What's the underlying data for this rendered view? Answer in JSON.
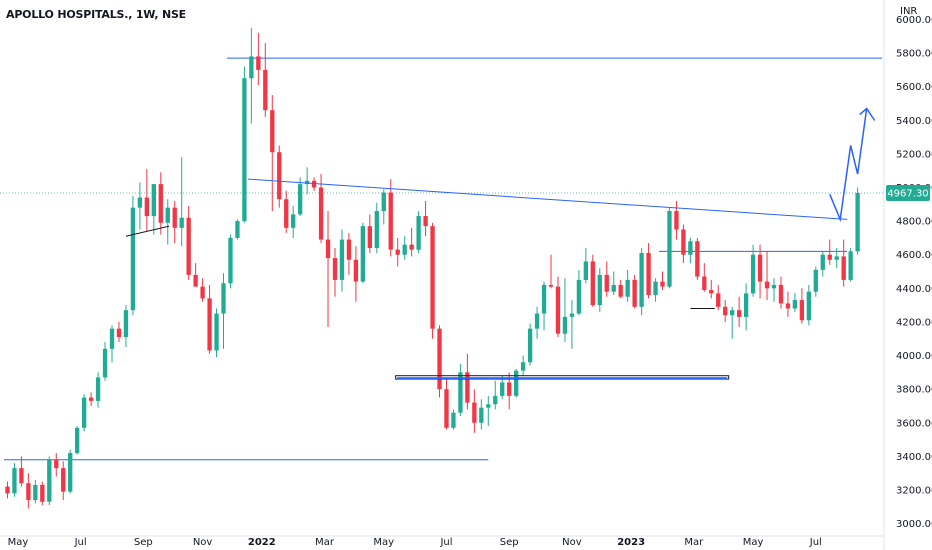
{
  "header": {
    "title": "APOLLO HOSPITALS., 1W, NSE"
  },
  "chart_data": {
    "type": "candlestick",
    "currency": "INR",
    "last_price_label": "4967.30",
    "y_range": [
      2950,
      6080
    ],
    "y_ticks": [
      3000,
      3200,
      3400,
      3600,
      3800,
      4000,
      4200,
      4400,
      4600,
      4800,
      5000,
      5200,
      5400,
      5600,
      5800,
      6000
    ],
    "y_tick_labels": [
      "3000.00",
      "3200.00",
      "3400.00",
      "3600.00",
      "3800.00",
      "4000.00",
      "4200.00",
      "4400.00",
      "4600.00",
      "4800.00",
      "5000.00",
      "5200.00",
      "5400.00",
      "5600.00",
      "5800.00",
      "6000.00"
    ],
    "x_range": [
      0,
      126
    ],
    "x_ticks": [
      {
        "label": "May",
        "x": 2,
        "bold": false
      },
      {
        "label": "Jul",
        "x": 11,
        "bold": false
      },
      {
        "label": "Sep",
        "x": 20,
        "bold": false
      },
      {
        "label": "Nov",
        "x": 28.5,
        "bold": false
      },
      {
        "label": "2022",
        "x": 37,
        "bold": true
      },
      {
        "label": "Mar",
        "x": 46,
        "bold": false
      },
      {
        "label": "May",
        "x": 54.5,
        "bold": false
      },
      {
        "label": "Jul",
        "x": 63.5,
        "bold": false
      },
      {
        "label": "Sep",
        "x": 72.5,
        "bold": false
      },
      {
        "label": "Nov",
        "x": 81.5,
        "bold": false
      },
      {
        "label": "2023",
        "x": 90,
        "bold": true
      },
      {
        "label": "Mar",
        "x": 99,
        "bold": false
      },
      {
        "label": "May",
        "x": 107.5,
        "bold": false
      },
      {
        "label": "Jul",
        "x": 116.5,
        "bold": false
      }
    ],
    "up_color": "#22ab94",
    "down_color": "#f23645",
    "line_color": "#2962ff",
    "candles": [
      [
        3220,
        3250,
        3150,
        3180
      ],
      [
        3180,
        3360,
        3160,
        3330
      ],
      [
        3330,
        3400,
        3220,
        3240
      ],
      [
        3240,
        3300,
        3090,
        3140
      ],
      [
        3140,
        3260,
        3120,
        3230
      ],
      [
        3230,
        3250,
        3110,
        3130
      ],
      [
        3130,
        3400,
        3110,
        3380
      ],
      [
        3380,
        3420,
        3280,
        3330
      ],
      [
        3330,
        3370,
        3140,
        3190
      ],
      [
        3190,
        3440,
        3180,
        3420
      ],
      [
        3420,
        3580,
        3410,
        3570
      ],
      [
        3570,
        3770,
        3550,
        3750
      ],
      [
        3750,
        3780,
        3700,
        3730
      ],
      [
        3730,
        3900,
        3690,
        3870
      ],
      [
        3870,
        4080,
        3850,
        4040
      ],
      [
        4040,
        4180,
        3960,
        4160
      ],
      [
        4160,
        4200,
        4080,
        4110
      ],
      [
        4110,
        4300,
        4050,
        4270
      ],
      [
        4270,
        4950,
        4240,
        4880
      ],
      [
        4880,
        5030,
        4750,
        4940
      ],
      [
        4940,
        5110,
        4740,
        4830
      ],
      [
        4830,
        5020,
        4720,
        5020
      ],
      [
        5020,
        5090,
        4720,
        4790
      ],
      [
        4790,
        4930,
        4660,
        4880
      ],
      [
        4880,
        4920,
        4670,
        4760
      ],
      [
        4760,
        5180,
        4650,
        4820
      ],
      [
        4820,
        4890,
        4450,
        4480
      ],
      [
        4480,
        4550,
        4410,
        4410
      ],
      [
        4410,
        4460,
        4320,
        4340
      ],
      [
        4340,
        4420,
        4010,
        4030
      ],
      [
        4030,
        4280,
        3990,
        4250
      ],
      [
        4250,
        4490,
        4040,
        4430
      ],
      [
        4430,
        4720,
        4400,
        4700
      ],
      [
        4700,
        4810,
        4690,
        4800
      ],
      [
        4800,
        5720,
        4790,
        5650
      ],
      [
        5650,
        5950,
        5380,
        5780
      ],
      [
        5780,
        5920,
        5610,
        5700
      ],
      [
        5700,
        5860,
        5420,
        5460
      ],
      [
        5460,
        5550,
        4860,
        5210
      ],
      [
        5210,
        5250,
        4880,
        4930
      ],
      [
        4930,
        4980,
        4730,
        4760
      ],
      [
        4760,
        4890,
        4700,
        4840
      ],
      [
        4840,
        5060,
        4830,
        5020
      ],
      [
        5020,
        5120,
        4960,
        5040
      ],
      [
        5040,
        5060,
        4980,
        5000
      ],
      [
        5000,
        5080,
        4670,
        4690
      ],
      [
        4690,
        4860,
        4170,
        4580
      ],
      [
        4580,
        4640,
        4350,
        4450
      ],
      [
        4450,
        4750,
        4380,
        4690
      ],
      [
        4690,
        4730,
        4480,
        4570
      ],
      [
        4570,
        4650,
        4320,
        4440
      ],
      [
        4440,
        4790,
        4430,
        4770
      ],
      [
        4770,
        4840,
        4610,
        4640
      ],
      [
        4640,
        4910,
        4610,
        4860
      ],
      [
        4860,
        4990,
        4780,
        4970
      ],
      [
        4970,
        5050,
        4590,
        4630
      ],
      [
        4630,
        4700,
        4530,
        4600
      ],
      [
        4600,
        4710,
        4570,
        4660
      ],
      [
        4660,
        4760,
        4590,
        4630
      ],
      [
        4630,
        4860,
        4610,
        4830
      ],
      [
        4830,
        4920,
        4710,
        4770
      ],
      [
        4770,
        4790,
        4100,
        4160
      ],
      [
        4160,
        4180,
        3750,
        3800
      ],
      [
        3800,
        3860,
        3560,
        3570
      ],
      [
        3570,
        3680,
        3560,
        3660
      ],
      [
        3660,
        3950,
        3640,
        3900
      ],
      [
        3900,
        4010,
        3680,
        3720
      ],
      [
        3720,
        3800,
        3540,
        3600
      ],
      [
        3600,
        3740,
        3560,
        3690
      ],
      [
        3690,
        3760,
        3580,
        3710
      ],
      [
        3710,
        3850,
        3680,
        3760
      ],
      [
        3760,
        3880,
        3740,
        3840
      ],
      [
        3840,
        3900,
        3680,
        3760
      ],
      [
        3760,
        3920,
        3750,
        3910
      ],
      [
        3910,
        4000,
        3880,
        3960
      ],
      [
        3960,
        4190,
        3940,
        4160
      ],
      [
        4160,
        4290,
        4100,
        4250
      ],
      [
        4250,
        4440,
        4150,
        4420
      ],
      [
        4420,
        4600,
        4400,
        4410
      ],
      [
        4410,
        4470,
        4110,
        4130
      ],
      [
        4130,
        4460,
        4080,
        4230
      ],
      [
        4230,
        4330,
        4040,
        4250
      ],
      [
        4250,
        4510,
        4240,
        4450
      ],
      [
        4450,
        4640,
        4430,
        4560
      ],
      [
        4560,
        4600,
        4290,
        4300
      ],
      [
        4300,
        4520,
        4260,
        4480
      ],
      [
        4480,
        4560,
        4350,
        4380
      ],
      [
        4380,
        4500,
        4360,
        4420
      ],
      [
        4420,
        4450,
        4340,
        4350
      ],
      [
        4350,
        4510,
        4320,
        4450
      ],
      [
        4450,
        4480,
        4280,
        4290
      ],
      [
        4290,
        4640,
        4240,
        4610
      ],
      [
        4610,
        4670,
        4340,
        4360
      ],
      [
        4360,
        4460,
        4320,
        4440
      ],
      [
        4440,
        4500,
        4390,
        4410
      ],
      [
        4410,
        4880,
        4400,
        4860
      ],
      [
        4860,
        4920,
        4690,
        4750
      ],
      [
        4750,
        4780,
        4550,
        4600
      ],
      [
        4600,
        4700,
        4550,
        4680
      ],
      [
        4680,
        4700,
        4450,
        4470
      ],
      [
        4470,
        4550,
        4380,
        4390
      ],
      [
        4390,
        4450,
        4340,
        4370
      ],
      [
        4370,
        4420,
        4270,
        4290
      ],
      [
        4290,
        4330,
        4200,
        4240
      ],
      [
        4240,
        4290,
        4100,
        4270
      ],
      [
        4270,
        4350,
        4170,
        4230
      ],
      [
        4230,
        4430,
        4150,
        4370
      ],
      [
        4370,
        4660,
        4350,
        4600
      ],
      [
        4600,
        4660,
        4340,
        4440
      ],
      [
        4440,
        4620,
        4330,
        4400
      ],
      [
        4400,
        4460,
        4320,
        4420
      ],
      [
        4420,
        4470,
        4280,
        4310
      ],
      [
        4310,
        4380,
        4230,
        4280
      ],
      [
        4280,
        4370,
        4260,
        4330
      ],
      [
        4330,
        4400,
        4190,
        4210
      ],
      [
        4210,
        4420,
        4180,
        4380
      ],
      [
        4380,
        4530,
        4350,
        4510
      ],
      [
        4510,
        4620,
        4470,
        4600
      ],
      [
        4600,
        4690,
        4540,
        4570
      ],
      [
        4570,
        4640,
        4520,
        4590
      ],
      [
        4590,
        4690,
        4410,
        4450
      ],
      [
        4450,
        4640,
        4440,
        4620
      ],
      [
        4620,
        5000,
        4600,
        4967.3
      ]
    ],
    "horizontal_levels": [
      {
        "price": 5770,
        "x_start": 32,
        "x_end": 126
      },
      {
        "price": 3380,
        "x_start": 0,
        "x_end": 69.5
      },
      {
        "price": 4620,
        "x_start": 94,
        "x_end": 121
      }
    ],
    "trendlines": [
      {
        "points": [
          [
            35,
            5050
          ],
          [
            121,
            4810
          ]
        ]
      },
      {
        "points": [
          [
            17.5,
            4710
          ],
          [
            23.7,
            4770
          ]
        ],
        "color": "#131722"
      },
      {
        "points": [
          [
            98.5,
            4280
          ],
          [
            102,
            4280
          ]
        ],
        "color": "#131722"
      }
    ],
    "zone": {
      "x_start": 56.2,
      "x_end": 104,
      "y_top": 3880,
      "y_bottom": 3860
    },
    "projection": [
      [
        118.5,
        4960
      ],
      [
        120,
        4810
      ],
      [
        121.5,
        5250
      ],
      [
        122.5,
        5080
      ],
      [
        123.8,
        5470
      ],
      [
        124.3,
        5420
      ]
    ],
    "last_price_line_y": 4967.3
  }
}
